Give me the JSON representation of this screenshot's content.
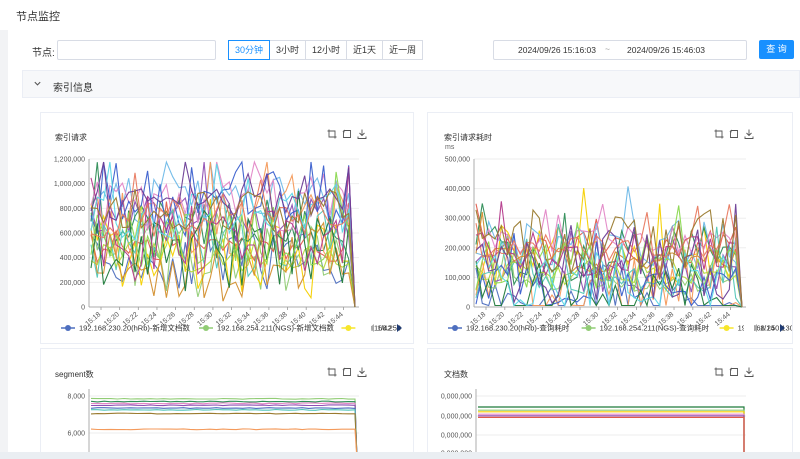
{
  "page": {
    "title": "节点监控"
  },
  "filter": {
    "node_label": "节点:",
    "node_value": "",
    "node_placeholder": "",
    "ranges": [
      {
        "label": "30分钟",
        "active": true
      },
      {
        "label": "3小时",
        "active": false
      },
      {
        "label": "12小时",
        "active": false
      },
      {
        "label": "近1天",
        "active": false
      },
      {
        "label": "近一周",
        "active": false
      }
    ],
    "date_start": "2024/09/26 15:16:03",
    "date_separator": "~",
    "date_end": "2024/09/26 15:46:03",
    "query_label": "查 询"
  },
  "section": {
    "title": "索引信息"
  },
  "accent_color": "#1890ff",
  "chart_data": [
    {
      "type": "line",
      "title": "索引请求",
      "ylim": [
        0,
        1200000
      ],
      "yticks": [
        "0",
        "200,000",
        "400,000",
        "600,000",
        "800,000",
        "1,000,000",
        "1,200,000"
      ],
      "x": [
        "15:18",
        "15:20",
        "15:22",
        "15:24",
        "15:26",
        "15:28",
        "15:30",
        "15:32",
        "15:34",
        "15:36",
        "15:38",
        "15:40",
        "15:42",
        "15:44"
      ],
      "legend": {
        "placement": "bottom",
        "page": "1/42",
        "entries": [
          {
            "name": "192.168.230.20(hRb)-新增文档数",
            "color": "#4e6fbf"
          },
          {
            "name": "192.168.254.211(NGS)-新增文档数",
            "color": "#91cc75"
          },
          {
            "name": "192.168.250",
            "color": "#f7e62b"
          }
        ]
      },
      "series_colors": [
        "#4e6fbf",
        "#91cc75",
        "#f5d000",
        "#e05b4b",
        "#6fb9e8",
        "#2f8e57",
        "#f49a5b",
        "#8e4fb3",
        "#e387c7",
        "#52c6b6",
        "#b5d93d",
        "#3a5fcd",
        "#d38f2e",
        "#1f7a3a",
        "#8ad84e",
        "#b43a8b",
        "#5bd7e6",
        "#e8795f",
        "#6c3d96",
        "#9a7b2f"
      ]
    },
    {
      "type": "line",
      "title": "索引请求耗时",
      "ylabel": "ms",
      "ylim": [
        0,
        500000
      ],
      "yticks": [
        "0",
        "100,000",
        "200,000",
        "300,000",
        "400,000",
        "500,000"
      ],
      "x": [
        "15:18",
        "15:20",
        "15:22",
        "15:24",
        "15:26",
        "15:28",
        "15:30",
        "15:32",
        "15:34",
        "15:36",
        "15:38",
        "15:40",
        "15:42",
        "15:44"
      ],
      "legend": {
        "placement": "bottom",
        "page": "1/14",
        "entries": [
          {
            "name": "192.168.230.20(hRb)-查询耗时",
            "color": "#4e6fbf"
          },
          {
            "name": "192.168.254.211(NGS)-查询耗时",
            "color": "#91cc75"
          },
          {
            "name": "192.168.250.130",
            "color": "#f7e62b"
          }
        ]
      },
      "series_colors": [
        "#4e6fbf",
        "#91cc75",
        "#f5d000",
        "#e05b4b",
        "#6fb9e8",
        "#2f8e57",
        "#f49a5b",
        "#8e4fb3",
        "#e387c7",
        "#52c6b6",
        "#b5d93d",
        "#3a5fcd",
        "#d38f2e",
        "#1f7a3a",
        "#8ad84e",
        "#b43a8b",
        "#5bd7e6",
        "#e8795f",
        "#6c3d96",
        "#9a7b2f"
      ]
    },
    {
      "type": "line",
      "title": "segment数",
      "ylim": [
        5500,
        8000
      ],
      "yticks": [
        "6,000",
        "8,000"
      ],
      "series": [
        {
          "color": "#91cc75",
          "value": 7850
        },
        {
          "color": "#2f8e57",
          "value": 7700
        },
        {
          "color": "#e387c7",
          "value": 7600
        },
        {
          "color": "#8e4fb3",
          "value": 7500
        },
        {
          "color": "#4e6fbf",
          "value": 7350
        },
        {
          "color": "#52c6b6",
          "value": 7250
        },
        {
          "color": "#9a7b2f",
          "value": 7050
        },
        {
          "color": "#f49a5b",
          "value": 6200
        }
      ]
    },
    {
      "type": "line",
      "title": "文档数",
      "yticks": [
        "0,000,000",
        "0,000,000",
        "0,000,000",
        "0,000,000"
      ],
      "series": [
        {
          "color": "#1f7a3a",
          "value": 0.93
        },
        {
          "color": "#91cc75",
          "value": 0.89
        },
        {
          "color": "#f5d000",
          "value": 0.87
        },
        {
          "color": "#e387c7",
          "value": 0.84
        },
        {
          "color": "#8e4fb3",
          "value": 0.82
        },
        {
          "color": "#e05b4b",
          "value": 0.8
        }
      ]
    }
  ],
  "icons": {
    "crop": "crop-icon",
    "restore": "restore-icon",
    "download": "download-icon",
    "collapse": "chevron-down-icon"
  }
}
